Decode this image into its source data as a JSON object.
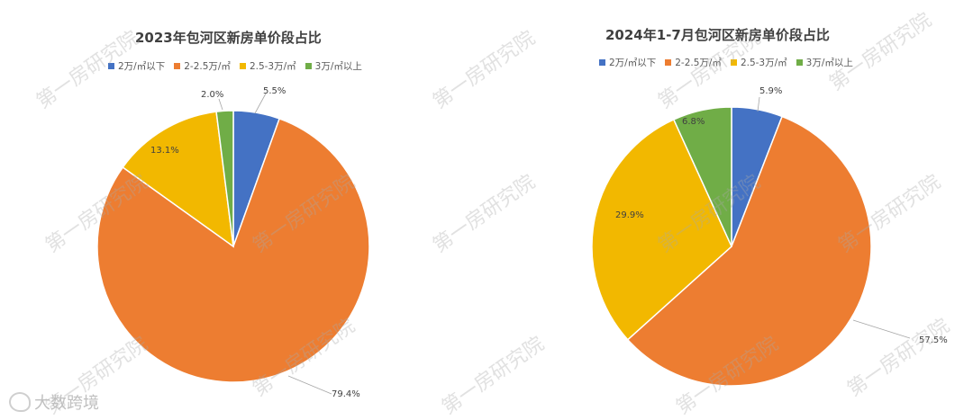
{
  "colors": [
    "#4472C4",
    "#ED7D31",
    "#F2B800",
    "#70AD47"
  ],
  "watermark_text": "第一房研究院",
  "brand_text": "大数跨境",
  "chart_data": [
    {
      "type": "pie",
      "title": "2023年包河区新房单价段占比",
      "legend": [
        "2万/㎡以下",
        "2-2.5万/㎡",
        "2.5-3万/㎡",
        "3万/㎡以上"
      ],
      "values": [
        5.5,
        79.4,
        13.1,
        2.0
      ],
      "labels": [
        "5.5%",
        "79.4%",
        "13.1%",
        "2.0%"
      ]
    },
    {
      "type": "pie",
      "title": "2024年1-7月包河区新房单价段占比",
      "legend": [
        "2万/㎡以下",
        "2-2.5万/㎡",
        "2.5-3万/㎡",
        "3万/㎡以上"
      ],
      "values": [
        5.9,
        57.5,
        29.9,
        6.8
      ],
      "labels": [
        "5.9%",
        "57.5%",
        "29.9%",
        "6.8%"
      ]
    }
  ]
}
